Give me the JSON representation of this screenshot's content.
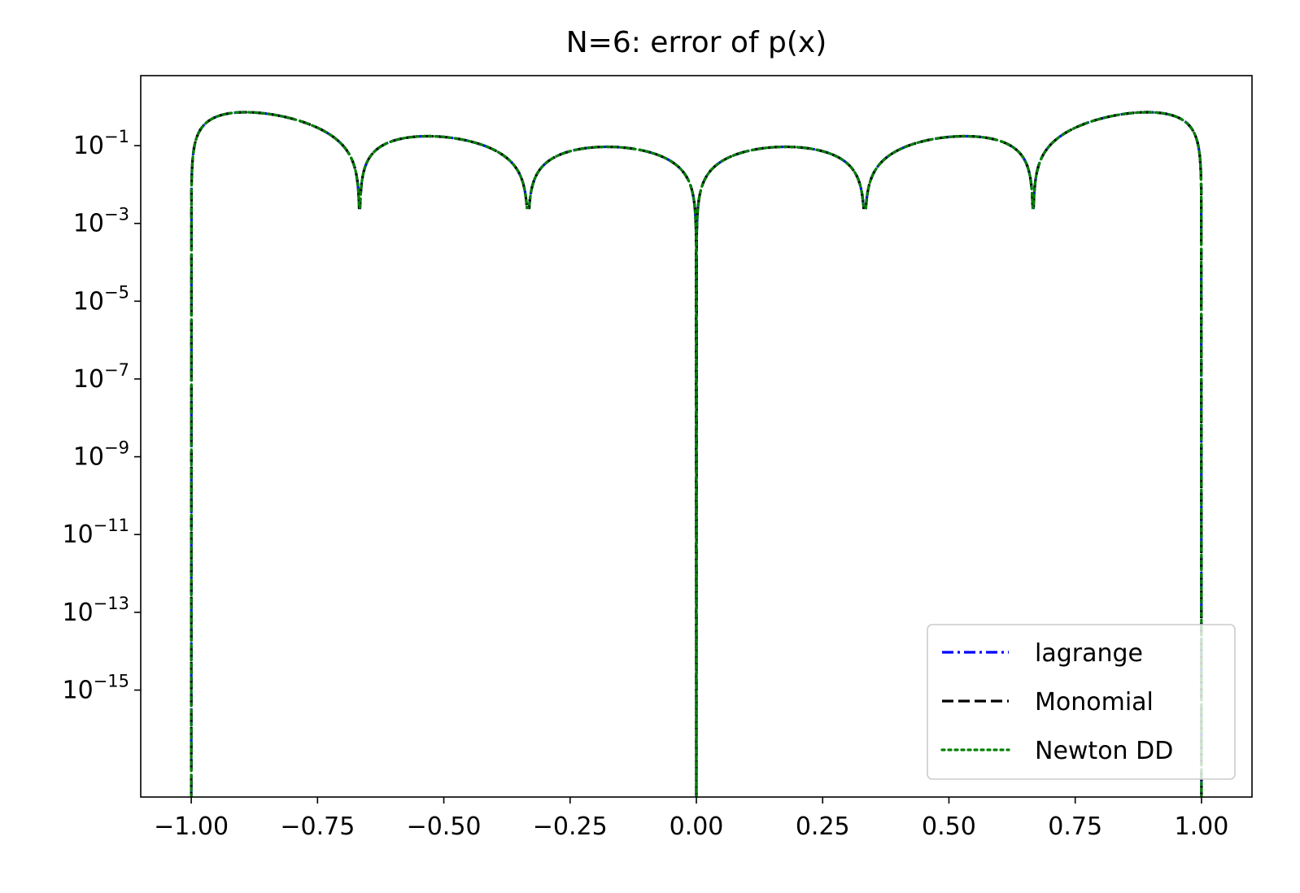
{
  "chart_data": {
    "type": "line",
    "title": "N=6: error of p(x)",
    "xlabel": "",
    "ylabel": "",
    "yscale": "log",
    "xlim": [
      -1.1,
      1.1
    ],
    "ylim_log10": [
      -17.75,
      0.8
    ],
    "x_ticks": [
      -1.0,
      -0.75,
      -0.5,
      -0.25,
      0.0,
      0.25,
      0.5,
      0.75,
      1.0
    ],
    "x_tick_labels": [
      "−1.00",
      "−0.75",
      "−0.50",
      "−0.25",
      "0.00",
      "0.25",
      "0.50",
      "0.75",
      "1.00"
    ],
    "y_ticks_exponent": [
      -1,
      -3,
      -5,
      -7,
      -9,
      -11,
      -13,
      -15
    ],
    "y_tick_labels": [
      {
        "base": "10",
        "exp": "−1"
      },
      {
        "base": "10",
        "exp": "−3"
      },
      {
        "base": "10",
        "exp": "−5"
      },
      {
        "base": "10",
        "exp": "−7"
      },
      {
        "base": "10",
        "exp": "−9"
      },
      {
        "base": "10",
        "exp": "−11"
      },
      {
        "base": "10",
        "exp": "−13"
      },
      {
        "base": "10",
        "exp": "−15"
      }
    ],
    "nodes": [
      -1.0,
      -0.6667,
      -0.3333,
      0.0,
      0.3333,
      0.6667,
      1.0
    ],
    "grid": false,
    "legend_position": "lower-right",
    "series": [
      {
        "name": "lagrange",
        "color": "#0000ff",
        "dash": "dashdot"
      },
      {
        "name": "Monomial",
        "color": "#000000",
        "dash": "dashed"
      },
      {
        "name": "Newton DD",
        "color": "#008000",
        "dash": "dotted"
      }
    ]
  }
}
